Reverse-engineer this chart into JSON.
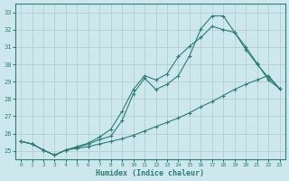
{
  "xlabel": "Humidex (Indice chaleur)",
  "bg_color": "#cde8ec",
  "grid_color": "#aacccc",
  "line_color": "#2d7d78",
  "xlim": [
    -0.5,
    23.5
  ],
  "ylim": [
    24.5,
    33.5
  ],
  "xticks": [
    0,
    1,
    2,
    3,
    4,
    5,
    6,
    7,
    8,
    9,
    10,
    11,
    12,
    13,
    14,
    15,
    16,
    17,
    18,
    19,
    20,
    21,
    22,
    23
  ],
  "yticks": [
    25,
    26,
    27,
    28,
    29,
    30,
    31,
    32,
    33
  ],
  "line1_x": [
    0,
    1,
    2,
    3,
    4,
    5,
    6,
    7,
    8,
    9,
    10,
    11,
    12,
    13,
    14,
    15,
    16,
    17,
    18,
    19,
    20,
    21,
    22,
    23
  ],
  "line1_y": [
    25.55,
    25.4,
    25.05,
    24.75,
    25.05,
    25.15,
    25.25,
    25.4,
    25.55,
    25.7,
    25.9,
    26.15,
    26.4,
    26.65,
    26.9,
    27.2,
    27.55,
    27.85,
    28.2,
    28.55,
    28.85,
    29.1,
    29.35,
    28.6
  ],
  "line2_x": [
    0,
    1,
    2,
    3,
    4,
    5,
    6,
    7,
    8,
    9,
    10,
    11,
    12,
    13,
    14,
    15,
    16,
    17,
    18,
    19,
    20,
    21,
    22,
    23
  ],
  "line2_y": [
    25.55,
    25.4,
    25.05,
    24.75,
    25.05,
    25.2,
    25.4,
    25.65,
    25.85,
    26.75,
    28.3,
    29.2,
    28.55,
    28.85,
    29.35,
    30.5,
    32.05,
    32.8,
    32.8,
    31.85,
    31.0,
    30.05,
    29.1,
    28.6
  ],
  "line3_x": [
    0,
    1,
    2,
    3,
    4,
    5,
    6,
    7,
    8,
    9,
    10,
    11,
    12,
    13,
    14,
    15,
    16,
    17,
    18,
    19,
    20,
    21,
    22,
    23
  ],
  "line3_y": [
    25.55,
    25.4,
    25.05,
    24.75,
    25.05,
    25.25,
    25.45,
    25.8,
    26.25,
    27.3,
    28.55,
    29.35,
    29.1,
    29.45,
    30.45,
    31.05,
    31.55,
    32.2,
    32.0,
    31.85,
    30.85,
    30.0,
    29.25,
    28.6
  ]
}
